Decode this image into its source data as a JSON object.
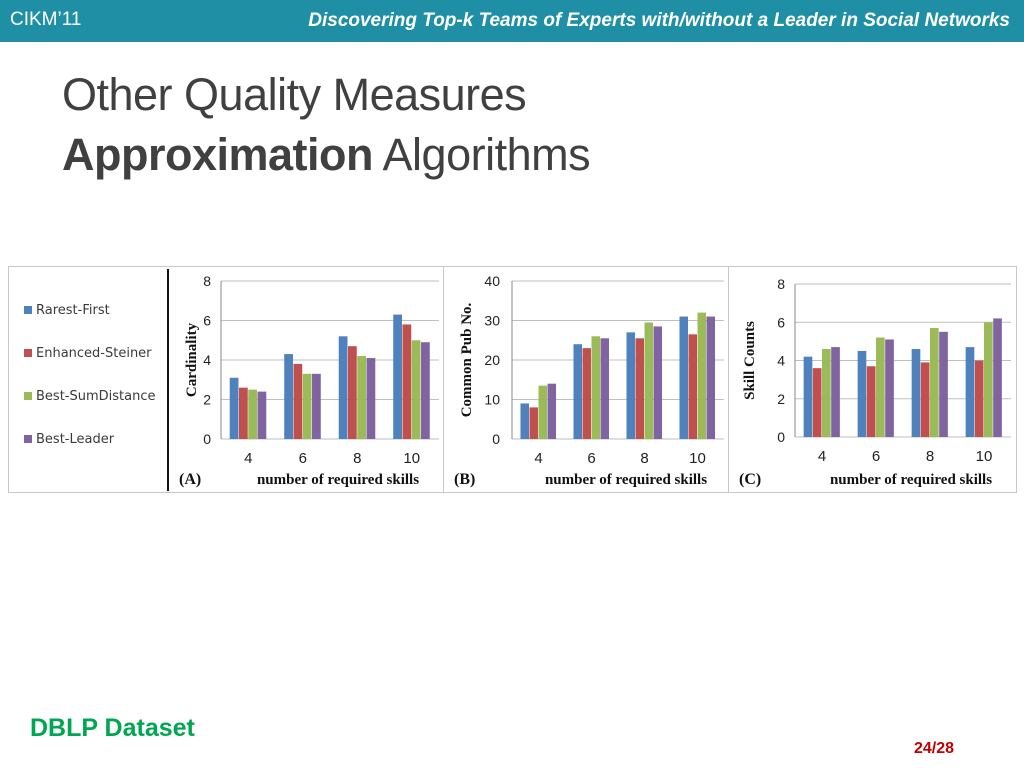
{
  "header": {
    "conference": "CIKM’11",
    "paper_title": "Discovering Top-k Teams of Experts with/without a Leader in Social Networks",
    "background_color": "#1f8fa5"
  },
  "slide_title": {
    "line1": "Other Quality Measures",
    "line2_bold": "Approximation",
    "line2_rest": " Algorithms"
  },
  "footer": {
    "dataset_label": "DBLP Dataset",
    "page_number": "24/28"
  },
  "legend": {
    "items": [
      {
        "name": "Rarest-First",
        "color": "#4f81bd"
      },
      {
        "name": "Enhanced-Steiner",
        "color": "#c0504d"
      },
      {
        "name": "Best-SumDistance",
        "color": "#9bbb59"
      },
      {
        "name": "Best-Leader",
        "color": "#8064a2"
      }
    ]
  },
  "chart_data": [
    {
      "type": "bar",
      "panel_label": "(A)",
      "xlabel": "number of required skills",
      "ylabel": "Cardinality",
      "categories": [
        "4",
        "6",
        "8",
        "10"
      ],
      "ylim": [
        0,
        8
      ],
      "yticks": [
        0,
        2,
        4,
        6,
        8
      ],
      "grid": true,
      "series": [
        {
          "name": "Rarest-First",
          "values": [
            3.1,
            4.3,
            5.2,
            6.3
          ]
        },
        {
          "name": "Enhanced-Steiner",
          "values": [
            2.6,
            3.8,
            4.7,
            5.8
          ]
        },
        {
          "name": "Best-SumDistance",
          "values": [
            2.5,
            3.3,
            4.2,
            5.0
          ]
        },
        {
          "name": "Best-Leader",
          "values": [
            2.4,
            3.3,
            4.1,
            4.9
          ]
        }
      ]
    },
    {
      "type": "bar",
      "panel_label": "(B)",
      "xlabel": "number of required skills",
      "ylabel": "Common Pub No.",
      "categories": [
        "4",
        "6",
        "8",
        "10"
      ],
      "ylim": [
        0,
        40
      ],
      "yticks": [
        0,
        10,
        20,
        30,
        40
      ],
      "grid": true,
      "series": [
        {
          "name": "Rarest-First",
          "values": [
            9,
            24,
            27,
            31
          ]
        },
        {
          "name": "Enhanced-Steiner",
          "values": [
            8,
            23,
            25.5,
            26.5
          ]
        },
        {
          "name": "Best-SumDistance",
          "values": [
            13.5,
            26,
            29.5,
            32
          ]
        },
        {
          "name": "Best-Leader",
          "values": [
            14,
            25.5,
            28.5,
            31
          ]
        }
      ]
    },
    {
      "type": "bar",
      "panel_label": "(C)",
      "xlabel": "number of required skills",
      "ylabel": "Skill Counts",
      "categories": [
        "4",
        "6",
        "8",
        "10"
      ],
      "ylim": [
        0,
        8
      ],
      "yticks": [
        0,
        2,
        4,
        6,
        8
      ],
      "grid": true,
      "series": [
        {
          "name": "Rarest-First",
          "values": [
            4.2,
            4.5,
            4.6,
            4.7
          ]
        },
        {
          "name": "Enhanced-Steiner",
          "values": [
            3.6,
            3.7,
            3.9,
            4.0
          ]
        },
        {
          "name": "Best-SumDistance",
          "values": [
            4.6,
            5.2,
            5.7,
            6.0
          ]
        },
        {
          "name": "Best-Leader",
          "values": [
            4.7,
            5.1,
            5.5,
            6.2
          ]
        }
      ]
    }
  ]
}
